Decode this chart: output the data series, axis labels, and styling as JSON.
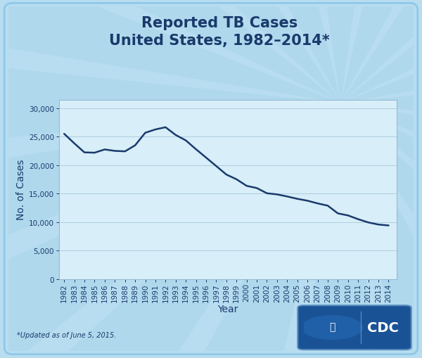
{
  "title_line1": "Reported TB Cases",
  "title_line2": "United States, 1982–2014*",
  "xlabel": "Year",
  "ylabel": "No. of Cases",
  "footnote": "*Updated as of June 5, 2015.",
  "years": [
    1982,
    1983,
    1984,
    1985,
    1986,
    1987,
    1988,
    1989,
    1990,
    1991,
    1992,
    1993,
    1994,
    1995,
    1996,
    1997,
    1998,
    1999,
    2000,
    2001,
    2002,
    2003,
    2004,
    2005,
    2006,
    2007,
    2008,
    2009,
    2010,
    2011,
    2012,
    2013,
    2014
  ],
  "cases": [
    25520,
    23846,
    22255,
    22201,
    22768,
    22517,
    22436,
    23495,
    25701,
    26283,
    26673,
    25313,
    24361,
    22813,
    21337,
    19855,
    18361,
    17531,
    16377,
    15989,
    15075,
    14874,
    14511,
    14097,
    13767,
    13293,
    12898,
    11540,
    11182,
    10521,
    9951,
    9582,
    9421
  ],
  "line_color": "#1a3a6b",
  "line_width": 1.8,
  "bg_outer": "#b8ddf0",
  "bg_inner": "#ceeaf8",
  "bg_plot": "#d8eef8",
  "title_color": "#1a3a6b",
  "axis_color": "#1a3a6b",
  "tick_color": "#1a3a6b",
  "yticks": [
    0,
    5000,
    10000,
    15000,
    20000,
    25000,
    30000
  ],
  "ylim": [
    0,
    31500
  ],
  "title_fontsize": 15,
  "axis_label_fontsize": 10,
  "tick_fontsize": 7.5,
  "footnote_fontsize": 7.0,
  "ray_color": "#a8d4ec",
  "ray_alpha": 0.5,
  "num_rays": 20,
  "cdc_bg": "#1a5296",
  "cdc_text_color": "#ffffff"
}
